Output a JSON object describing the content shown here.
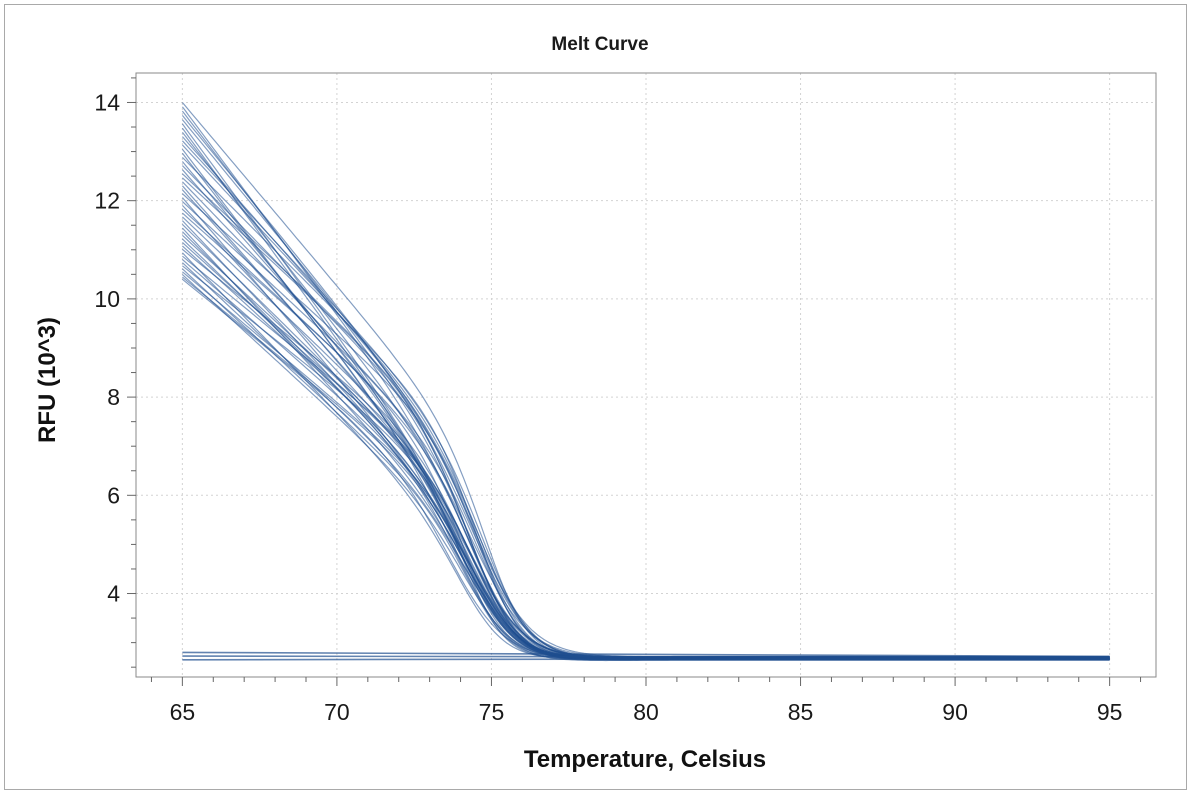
{
  "chart_data": {
    "type": "line",
    "title": "Melt Curve",
    "xlabel": "Temperature, Celsius",
    "ylabel": "RFU (10^3)",
    "xlim": [
      63.5,
      96.5
    ],
    "ylim": [
      2.3,
      14.6
    ],
    "xticks": [
      65,
      70,
      75,
      80,
      85,
      90,
      95
    ],
    "yticks": [
      4,
      6,
      8,
      10,
      12,
      14
    ],
    "grid": true,
    "line_color": "#1f4f8f",
    "series_summary": {
      "melting_samples": {
        "count": 48,
        "x_start": 65,
        "x_end": 95,
        "start_rfu_range": [
          10.4,
          14.0
        ],
        "knee_temperature": 72.5,
        "melt_midpoint_temperature": 74.7,
        "plateau_rfu": 2.68
      },
      "flat_baseline_samples": {
        "count": 3,
        "rfu_range": [
          2.65,
          2.8
        ]
      }
    }
  }
}
